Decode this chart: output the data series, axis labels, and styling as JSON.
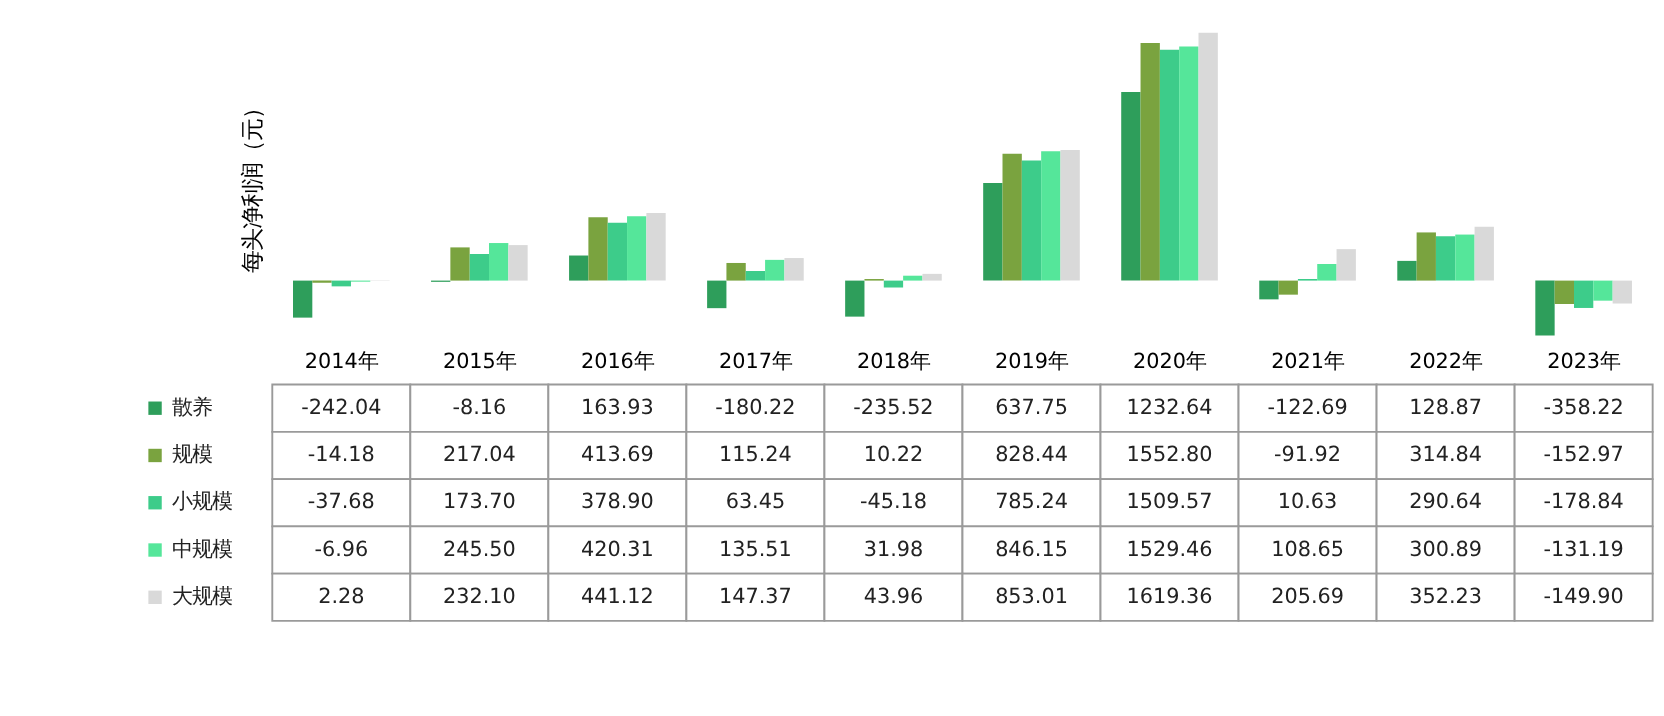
{
  "chart_data": {
    "type": "bar",
    "ylabel": "每头净利润（元）",
    "categories": [
      "2014年",
      "2015年",
      "2016年",
      "2017年",
      "2018年",
      "2019年",
      "2020年",
      "2021年",
      "2022年",
      "2023年"
    ],
    "series": [
      {
        "name": "散养",
        "color": "#2e9e5b",
        "values": [
          -242.04,
          -8.16,
          163.93,
          -180.22,
          -235.52,
          637.75,
          1232.64,
          -122.69,
          128.87,
          -358.22
        ],
        "value_labels": [
          "-242.04",
          "-8.16",
          "163.93",
          "-180.22",
          "-235.52",
          "637.75",
          "1232.64",
          "-122.69",
          "128.87",
          "-358.22"
        ]
      },
      {
        "name": "规模",
        "color": "#7aa33f",
        "values": [
          -14.18,
          217.04,
          413.69,
          115.24,
          10.22,
          828.44,
          1552.8,
          -91.92,
          314.84,
          -152.97
        ],
        "value_labels": [
          "-14.18",
          "217.04",
          "413.69",
          "115.24",
          "10.22",
          "828.44",
          "1552.80",
          "-91.92",
          "314.84",
          "-152.97"
        ]
      },
      {
        "name": "小规模",
        "color": "#3dcc8a",
        "values": [
          -37.68,
          173.7,
          378.9,
          63.45,
          -45.18,
          785.24,
          1509.57,
          10.63,
          290.64,
          -178.84
        ],
        "value_labels": [
          "-37.68",
          "173.70",
          "378.90",
          "63.45",
          "-45.18",
          "785.24",
          "1509.57",
          "10.63",
          "290.64",
          "-178.84"
        ]
      },
      {
        "name": "中规模",
        "color": "#55e69a",
        "values": [
          -6.96,
          245.5,
          420.31,
          135.51,
          31.98,
          846.15,
          1529.46,
          108.65,
          300.89,
          -131.19
        ],
        "value_labels": [
          "-6.96",
          "245.50",
          "420.31",
          "135.51",
          "31.98",
          "846.15",
          "1529.46",
          "108.65",
          "300.89",
          "-131.19"
        ]
      },
      {
        "name": "大规模",
        "color": "#d9d9d9",
        "values": [
          2.28,
          232.1,
          441.12,
          147.37,
          43.96,
          853.01,
          1619.36,
          205.69,
          352.23,
          -149.9
        ],
        "value_labels": [
          "2.28",
          "232.10",
          "441.12",
          "147.37",
          "43.96",
          "853.01",
          "1619.36",
          "205.69",
          "352.23",
          "-149.90"
        ]
      }
    ],
    "legend": "bottom",
    "grid": false
  }
}
